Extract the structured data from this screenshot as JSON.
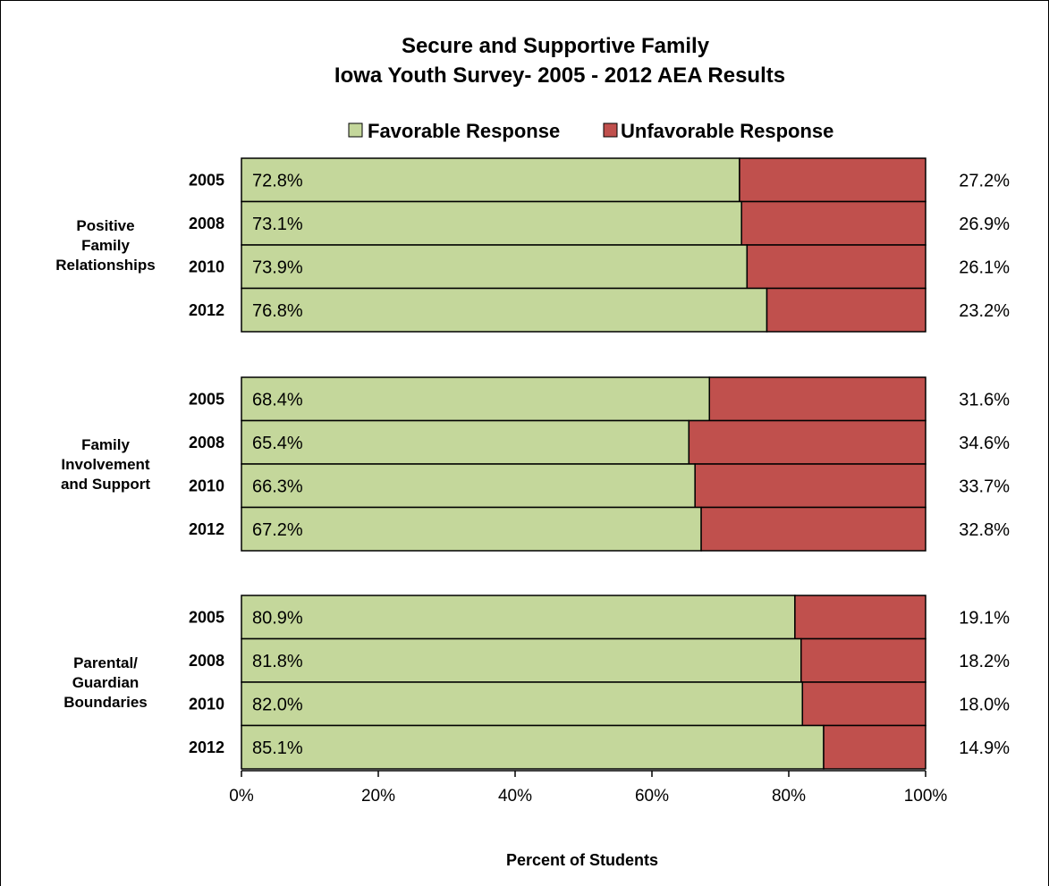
{
  "chart_data": {
    "type": "bar",
    "orientation": "horizontal",
    "stacked": true,
    "title_lines": [
      "Secure and Supportive Family",
      "Iowa Youth Survey- 2005 - 2012 AEA Results"
    ],
    "xlabel": "Percent of Students",
    "xlim": [
      0,
      100
    ],
    "x_ticks": [
      "0%",
      "20%",
      "40%",
      "60%",
      "80%",
      "100%"
    ],
    "legend": {
      "position": "top",
      "entries": [
        {
          "label": "Favorable Response",
          "color": "#c4d79b"
        },
        {
          "label": "Unfavorable Response",
          "color": "#c0504d"
        }
      ]
    },
    "groups": [
      {
        "label_lines": [
          "Positive",
          "Family",
          "Relationships"
        ],
        "rows": [
          {
            "year": "2005",
            "favorable": 72.8,
            "unfavorable": 27.2,
            "favorable_label": "72.8%",
            "unfavorable_label": "27.2%"
          },
          {
            "year": "2008",
            "favorable": 73.1,
            "unfavorable": 26.9,
            "favorable_label": "73.1%",
            "unfavorable_label": "26.9%"
          },
          {
            "year": "2010",
            "favorable": 73.9,
            "unfavorable": 26.1,
            "favorable_label": "73.9%",
            "unfavorable_label": "26.1%"
          },
          {
            "year": "2012",
            "favorable": 76.8,
            "unfavorable": 23.2,
            "favorable_label": "76.8%",
            "unfavorable_label": "23.2%"
          }
        ]
      },
      {
        "label_lines": [
          "Family",
          "Involvement",
          "and Support"
        ],
        "rows": [
          {
            "year": "2005",
            "favorable": 68.4,
            "unfavorable": 31.6,
            "favorable_label": "68.4%",
            "unfavorable_label": "31.6%"
          },
          {
            "year": "2008",
            "favorable": 65.4,
            "unfavorable": 34.6,
            "favorable_label": "65.4%",
            "unfavorable_label": "34.6%"
          },
          {
            "year": "2010",
            "favorable": 66.3,
            "unfavorable": 33.7,
            "favorable_label": "66.3%",
            "unfavorable_label": "33.7%"
          },
          {
            "year": "2012",
            "favorable": 67.2,
            "unfavorable": 32.8,
            "favorable_label": "67.2%",
            "unfavorable_label": "32.8%"
          }
        ]
      },
      {
        "label_lines": [
          "Parental/",
          "Guardian",
          "Boundaries"
        ],
        "rows": [
          {
            "year": "2005",
            "favorable": 80.9,
            "unfavorable": 19.1,
            "favorable_label": "80.9%",
            "unfavorable_label": "19.1%"
          },
          {
            "year": "2008",
            "favorable": 81.8,
            "unfavorable": 18.2,
            "favorable_label": "81.8%",
            "unfavorable_label": "18.2%"
          },
          {
            "year": "2010",
            "favorable": 82.0,
            "unfavorable": 18.0,
            "favorable_label": "82.0%",
            "unfavorable_label": "18.0%"
          },
          {
            "year": "2012",
            "favorable": 85.1,
            "unfavorable": 14.9,
            "favorable_label": "85.1%",
            "unfavorable_label": "14.9%"
          }
        ]
      }
    ]
  }
}
